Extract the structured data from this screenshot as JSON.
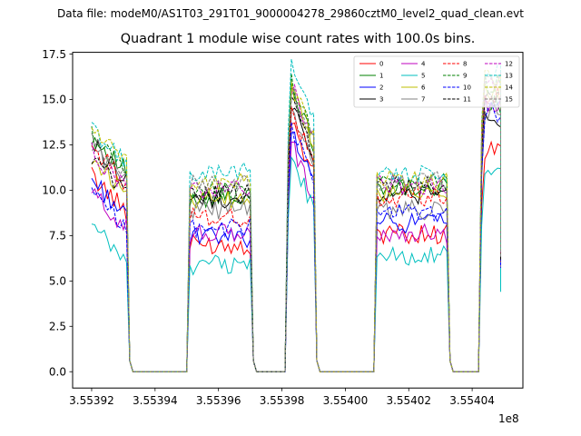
{
  "header": {
    "suptitle": "Data file: modeM0/AS1T03_291T01_9000004278_29860cztM0_level2_quad_clean.evt",
    "title": "Quadrant 1 module wise count rates with 100.0s bins."
  },
  "chart_data": {
    "type": "line",
    "title": "Quadrant 1 module wise count rates with 100.0s bins.",
    "suptitle": "Data file: modeM0/AS1T03_291T01_9000004278_29860cztM0_level2_quad_clean.evt",
    "xlabel": "",
    "ylabel": "",
    "x_offset_label": "1e8",
    "xlim": [
      355391400,
      355405600
    ],
    "ylim": [
      -0.9,
      17.6
    ],
    "x_ticks": [
      {
        "value": 355392000,
        "label": "3.55392"
      },
      {
        "value": 355394000,
        "label": "3.55394"
      },
      {
        "value": 355396000,
        "label": "3.55396"
      },
      {
        "value": 355398000,
        "label": "3.55398"
      },
      {
        "value": 355400000,
        "label": "3.55400"
      },
      {
        "value": 355402000,
        "label": "3.55402"
      },
      {
        "value": 355404000,
        "label": "3.55404"
      }
    ],
    "y_ticks": [
      {
        "value": 0,
        "label": "0.0"
      },
      {
        "value": 2.5,
        "label": "2.5"
      },
      {
        "value": 5,
        "label": "5.0"
      },
      {
        "value": 7.5,
        "label": "7.5"
      },
      {
        "value": 10,
        "label": "10.0"
      },
      {
        "value": 12.5,
        "label": "12.5"
      },
      {
        "value": 15,
        "label": "15.0"
      },
      {
        "value": 17.5,
        "label": "17.5"
      }
    ],
    "grid": false,
    "legend": {
      "position": "top-right",
      "columns": 4
    },
    "segments": [
      {
        "start": 355392000,
        "end": 355393100
      },
      {
        "start": 355395100,
        "end": 355397000
      },
      {
        "start": 355398200,
        "end": 355399000
      },
      {
        "start": 355401000,
        "end": 355403200
      },
      {
        "start": 355404300,
        "end": 355404900
      }
    ],
    "series": [
      {
        "name": "0",
        "color": "#ff0000",
        "dash": false,
        "levels": [
          9.8,
          7.0,
          12.5,
          7.6,
          12.2
        ]
      },
      {
        "name": "1",
        "color": "#008000",
        "dash": false,
        "levels": [
          12.0,
          9.6,
          14.3,
          10.2,
          14.7
        ]
      },
      {
        "name": "2",
        "color": "#0000ff",
        "dash": false,
        "levels": [
          9.6,
          7.4,
          12.0,
          8.2,
          14.5
        ]
      },
      {
        "name": "3",
        "color": "#000000",
        "dash": false,
        "levels": [
          11.6,
          9.5,
          13.6,
          9.8,
          14.0
        ]
      },
      {
        "name": "4",
        "color": "#bf00bf",
        "dash": false,
        "levels": [
          8.9,
          7.6,
          11.3,
          7.6,
          14.7
        ]
      },
      {
        "name": "5",
        "color": "#00bfbf",
        "dash": false,
        "levels": [
          7.0,
          5.9,
          10.6,
          6.4,
          11.0
        ]
      },
      {
        "name": "6",
        "color": "#bfbf00",
        "dash": false,
        "levels": [
          10.8,
          9.4,
          14.4,
          9.8,
          15.5
        ]
      },
      {
        "name": "7",
        "color": "#808080",
        "dash": false,
        "levels": [
          11.4,
          8.9,
          13.0,
          8.9,
          14.3
        ]
      },
      {
        "name": "8",
        "color": "#ff0000",
        "dash": true,
        "levels": [
          11.4,
          8.5,
          13.1,
          9.6,
          15.2
        ]
      },
      {
        "name": "9",
        "color": "#008000",
        "dash": true,
        "levels": [
          12.0,
          9.9,
          14.7,
          10.4,
          15.9
        ]
      },
      {
        "name": "10",
        "color": "#0000ff",
        "dash": true,
        "levels": [
          8.8,
          7.9,
          12.2,
          8.7,
          14.3
        ]
      },
      {
        "name": "11",
        "color": "#000000",
        "dash": true,
        "levels": [
          10.8,
          9.8,
          13.7,
          10.2,
          15.2
        ]
      },
      {
        "name": "12",
        "color": "#bf00bf",
        "dash": true,
        "levels": [
          11.1,
          10.0,
          14.5,
          10.3,
          16.0
        ]
      },
      {
        "name": "13",
        "color": "#00bfbf",
        "dash": true,
        "levels": [
          12.4,
          11.0,
          15.6,
          10.9,
          16.5
        ]
      },
      {
        "name": "14",
        "color": "#bfbf00",
        "dash": true,
        "levels": [
          12.5,
          10.4,
          14.7,
          10.6,
          16.3
        ]
      },
      {
        "name": "15",
        "color": "#808080",
        "dash": true,
        "levels": [
          11.7,
          10.3,
          14.2,
          10.5,
          15.8
        ]
      }
    ]
  }
}
